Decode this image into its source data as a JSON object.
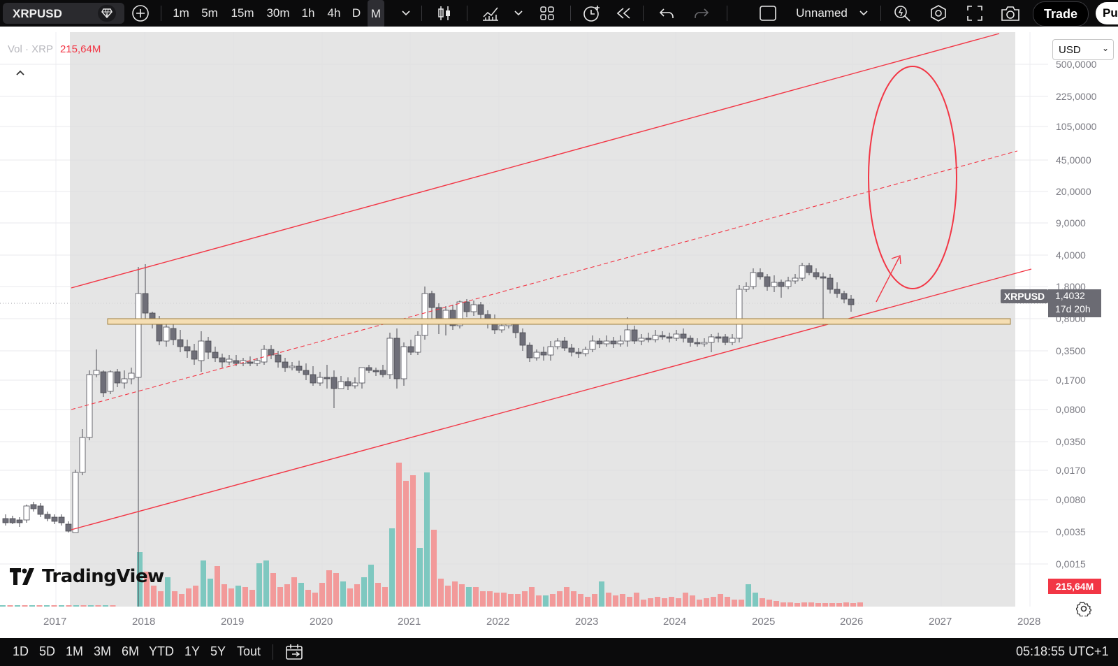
{
  "toolbar": {
    "symbol": "XRPUSD",
    "timeframes": [
      "1m",
      "5m",
      "15m",
      "30m",
      "1h",
      "4h",
      "D",
      "M"
    ],
    "active_timeframe": "M",
    "layout_name": "Unnamed",
    "trade_label": "Trade",
    "publish_label": "Pu"
  },
  "legend": {
    "vol_label": "Vol · XRP",
    "vol_value": "215,64M"
  },
  "currency": "USD",
  "last_price": {
    "symbol": "XRPUSD",
    "price": "1,4032",
    "countdown": "17d 20h"
  },
  "volume_label": "215,64M",
  "brand": "TradingView",
  "bottombar": {
    "ranges": [
      "1D",
      "5D",
      "1M",
      "3M",
      "6M",
      "YTD",
      "1Y",
      "5Y",
      "Tout"
    ],
    "clock": "05:18:55 UTC+1"
  },
  "colors": {
    "up": "#ffffff",
    "down": "#6e6e78",
    "vol_up": "#7ec8c0",
    "vol_down": "#f29a9a",
    "channel": "#f23645",
    "support_band": "#f5deb3"
  },
  "chart_data": {
    "type": "candlestick",
    "symbol": "XRPUSD",
    "interval": "1M",
    "y_scale": "log",
    "y_tick_labels": [
      "500,0000",
      "225,0000",
      "105,0000",
      "45,0000",
      "20,0000",
      "9,0000",
      "4,0000",
      "1,8000",
      "0,8000",
      "0,3500",
      "0,1700",
      "0,0800",
      "0,0350",
      "0,0170",
      "0,0080",
      "0,0035",
      "0,0015"
    ],
    "x_tick_labels": [
      "2017",
      "2018",
      "2019",
      "2020",
      "2021",
      "2022",
      "2023",
      "2024",
      "2025",
      "2026",
      "2027",
      "2028"
    ],
    "last_price": 1.4032,
    "annotations": [
      "ascending channel",
      "channel midline (dashed)",
      "horizontal support band",
      "target ellipse",
      "arrow up"
    ]
  }
}
